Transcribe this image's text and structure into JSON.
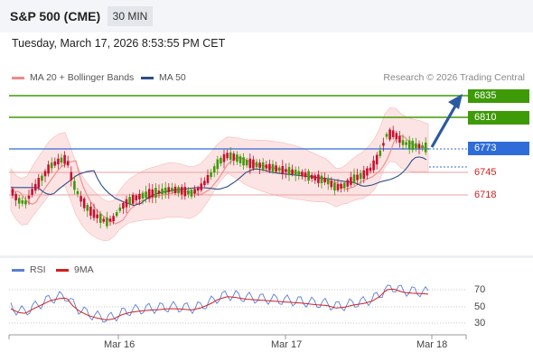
{
  "header": {
    "title": "S&P 500 (CME)",
    "timeframe": "30 MIN"
  },
  "datetime": "Tuesday, March 17, 2026 8:53:55 PM CET",
  "legend": {
    "ma20": {
      "label": "MA 20 + Bollinger Bands",
      "color": "#f08a86"
    },
    "ma50": {
      "label": "MA 50",
      "color": "#2b4f86"
    },
    "credit": "Research © 2026 Trading Central"
  },
  "levels": {
    "resistances": [
      "6835",
      "6810"
    ],
    "last": "6773",
    "supports": [
      "6745",
      "6718"
    ]
  },
  "rsi_legend": {
    "rsi": {
      "label": "RSI",
      "color": "#5a7fd6"
    },
    "ma9": {
      "label": "9MA",
      "color": "#d21f1f"
    }
  },
  "rsi_ticks": [
    "70",
    "50",
    "30"
  ],
  "x_axis": [
    "Mar 16",
    "Mar 17",
    "Mar 18"
  ],
  "colors": {
    "up": "#3e9a07",
    "down": "#c8102e",
    "band": "#fde4e4",
    "last_line": "#2f6cd8",
    "arrow": "#2b5aa0"
  }
}
